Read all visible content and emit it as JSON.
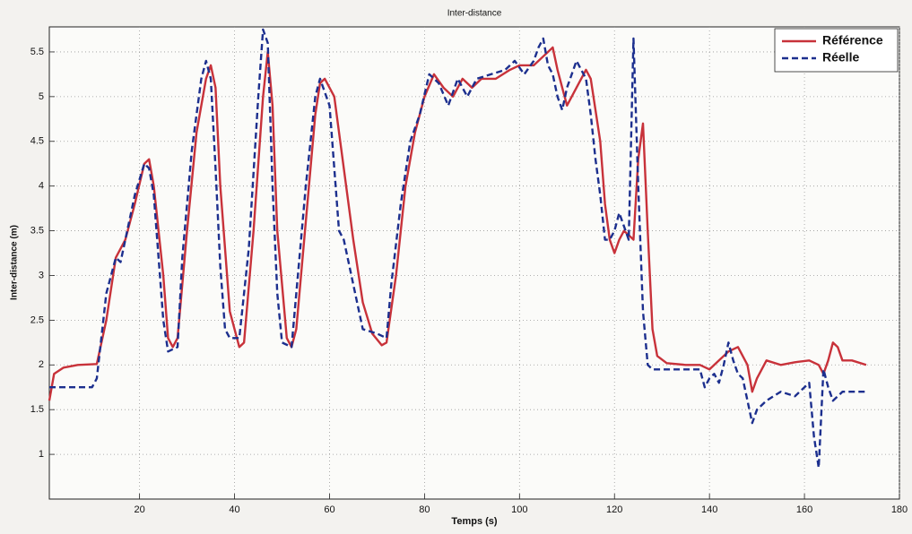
{
  "chart_data": {
    "type": "line",
    "title": "Inter-distance",
    "xlabel": "Temps (s)",
    "ylabel": "Inter-distance (m)",
    "xlim": [
      1,
      180
    ],
    "ylim": [
      0.5,
      5.78
    ],
    "xticks": [
      20,
      40,
      60,
      80,
      100,
      120,
      140,
      160,
      180
    ],
    "yticks": [
      1,
      1.5,
      2,
      2.5,
      3,
      3.5,
      4,
      4.5,
      5,
      5.5
    ],
    "grid": true,
    "legend": "top-right",
    "series": [
      {
        "name": "Référence",
        "color": "#c8323a",
        "dash": false,
        "x": [
          1,
          2,
          4,
          7,
          11,
          13,
          15,
          17,
          19,
          21,
          22,
          23,
          25,
          26,
          27,
          28,
          30,
          32,
          34,
          35,
          36,
          37,
          39,
          41,
          42,
          44,
          46,
          47,
          48,
          49,
          51,
          52,
          53,
          55,
          57,
          58,
          59,
          61,
          63,
          65,
          67,
          69,
          71,
          72,
          74,
          76,
          78,
          80,
          82,
          84,
          86,
          88,
          90,
          92,
          95,
          98,
          100,
          103,
          105,
          107,
          108,
          110,
          112,
          114,
          115,
          117,
          118,
          119,
          120,
          121,
          122,
          123,
          124,
          125,
          126,
          127,
          128,
          129,
          131,
          135,
          138,
          140,
          142,
          144,
          146,
          147,
          148,
          149,
          150,
          152,
          155,
          158,
          161,
          163,
          164,
          165,
          166,
          167,
          168,
          170,
          173
        ],
        "values": [
          1.6,
          1.9,
          1.97,
          2.0,
          2.01,
          2.5,
          3.2,
          3.4,
          3.8,
          4.25,
          4.3,
          4.0,
          3.0,
          2.3,
          2.2,
          2.3,
          3.5,
          4.6,
          5.2,
          5.35,
          5.1,
          4.0,
          2.6,
          2.2,
          2.25,
          3.5,
          5.0,
          5.5,
          4.9,
          3.5,
          2.3,
          2.2,
          2.4,
          3.6,
          4.8,
          5.15,
          5.2,
          5.0,
          4.2,
          3.4,
          2.7,
          2.35,
          2.22,
          2.25,
          3.0,
          4.0,
          4.6,
          5.0,
          5.25,
          5.1,
          5.0,
          5.2,
          5.1,
          5.2,
          5.2,
          5.3,
          5.35,
          5.35,
          5.45,
          5.55,
          5.3,
          4.9,
          5.1,
          5.3,
          5.2,
          4.5,
          3.8,
          3.4,
          3.25,
          3.4,
          3.5,
          3.45,
          3.4,
          4.3,
          4.7,
          3.5,
          2.4,
          2.1,
          2.02,
          2.0,
          2.0,
          1.95,
          2.05,
          2.15,
          2.2,
          2.1,
          2.0,
          1.7,
          1.85,
          2.05,
          2.0,
          2.03,
          2.05,
          2.0,
          1.9,
          2.05,
          2.25,
          2.2,
          2.05,
          2.05,
          2.0
        ]
      },
      {
        "name": "Réelle",
        "color": "#1c2f8e",
        "dash": true,
        "x": [
          1,
          5,
          10,
          11,
          13,
          15,
          16,
          17,
          19,
          21,
          22,
          23,
          24,
          25,
          26,
          28,
          29,
          31,
          33,
          34,
          35,
          36,
          37,
          38,
          39,
          41,
          43,
          45,
          46,
          47,
          48,
          49,
          50,
          52,
          53,
          55,
          57,
          58,
          60,
          61,
          62,
          63,
          65,
          67,
          70,
          72,
          73,
          75,
          77,
          79,
          81,
          83,
          85,
          87,
          89,
          91,
          94,
          97,
          99,
          101,
          103,
          104,
          105,
          106,
          107,
          108,
          109,
          110,
          112,
          114,
          115,
          116,
          117,
          118,
          119,
          120,
          121,
          122,
          123,
          124,
          125,
          126,
          127,
          128,
          132,
          136,
          138,
          139,
          140,
          141,
          142,
          143,
          144,
          145,
          146,
          147,
          148,
          149,
          150,
          152,
          155,
          158,
          160,
          161,
          162,
          163,
          164,
          165,
          166,
          168,
          170,
          172,
          173
        ],
        "values": [
          1.75,
          1.75,
          1.75,
          1.85,
          2.8,
          3.2,
          3.15,
          3.4,
          3.9,
          4.25,
          4.2,
          3.9,
          3.2,
          2.5,
          2.15,
          2.2,
          3.2,
          4.4,
          5.2,
          5.4,
          5.2,
          4.2,
          3.1,
          2.4,
          2.3,
          2.3,
          3.3,
          5.0,
          5.75,
          5.6,
          4.0,
          2.8,
          2.25,
          2.2,
          2.8,
          4.0,
          5.0,
          5.2,
          4.9,
          4.2,
          3.5,
          3.4,
          2.9,
          2.4,
          2.35,
          2.3,
          2.9,
          3.8,
          4.5,
          4.8,
          5.25,
          5.15,
          4.9,
          5.2,
          5.0,
          5.2,
          5.25,
          5.3,
          5.4,
          5.25,
          5.4,
          5.55,
          5.65,
          5.35,
          5.25,
          5.0,
          4.85,
          5.1,
          5.4,
          5.2,
          4.8,
          4.3,
          3.9,
          3.4,
          3.4,
          3.5,
          3.7,
          3.55,
          3.4,
          5.65,
          4.0,
          2.6,
          2.0,
          1.95,
          1.95,
          1.95,
          1.95,
          1.75,
          1.85,
          1.9,
          1.8,
          2.0,
          2.25,
          2.05,
          1.9,
          1.85,
          1.6,
          1.35,
          1.5,
          1.6,
          1.7,
          1.65,
          1.75,
          1.8,
          1.2,
          0.85,
          1.95,
          1.75,
          1.6,
          1.7,
          1.7,
          1.7,
          1.7
        ]
      }
    ]
  }
}
